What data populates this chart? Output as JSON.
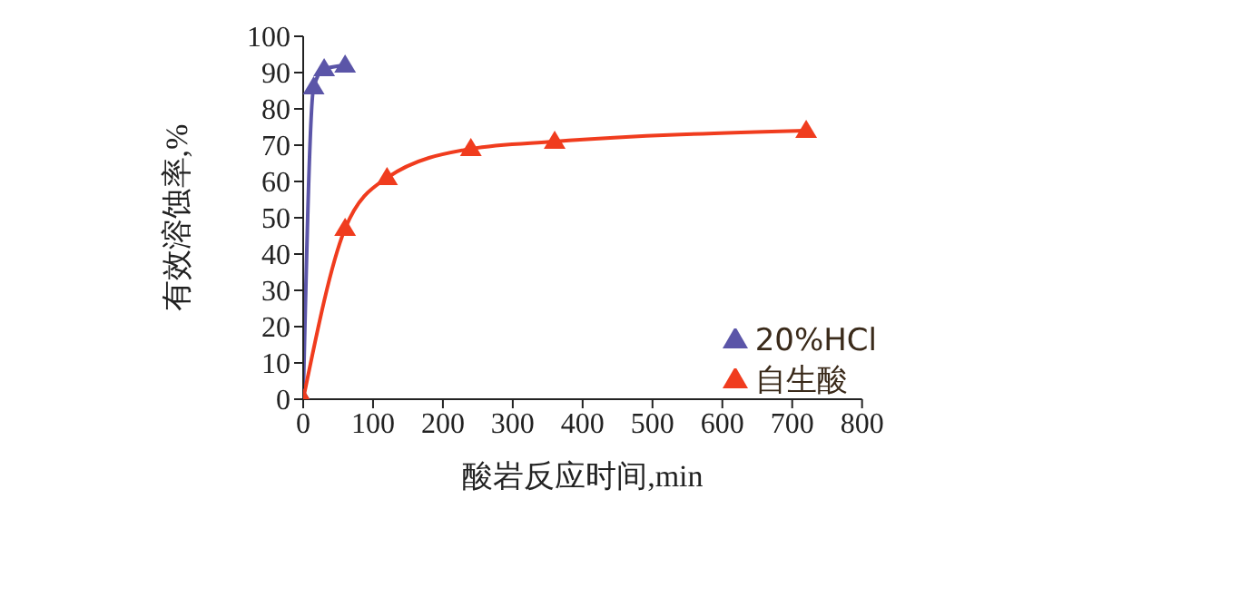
{
  "chart_data": {
    "type": "line",
    "xlabel": "酸岩反应时间,min",
    "ylabel": "有效溶蚀率,%",
    "xlim": [
      0,
      800
    ],
    "xticks": [
      0,
      100,
      200,
      300,
      400,
      500,
      600,
      700,
      800
    ],
    "ylim": [
      0,
      100
    ],
    "yticks": [
      0,
      10,
      20,
      30,
      40,
      50,
      60,
      70,
      80,
      90,
      100
    ],
    "grid": false,
    "legend": "right",
    "marker": "triangle",
    "line_style": "solid",
    "series": [
      {
        "name": "20%HCl",
        "color": "#5b55a8",
        "x": [
          0,
          15,
          30,
          60
        ],
        "values": [
          0,
          86,
          91,
          92
        ]
      },
      {
        "name": "自生酸",
        "color": "#f03c1e",
        "x": [
          0,
          60,
          120,
          240,
          360,
          720
        ],
        "values": [
          0,
          47,
          61,
          69,
          71,
          74
        ]
      }
    ]
  }
}
